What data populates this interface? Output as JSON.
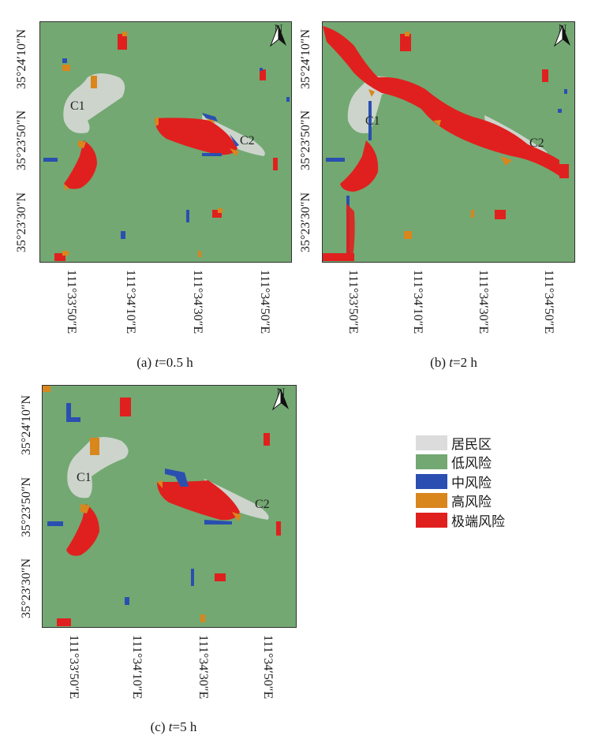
{
  "panels": [
    {
      "id": "a",
      "caption_prefix": "(a) ",
      "caption_var": "t",
      "caption_suffix": "=0.5 h",
      "y_ticks": [
        "35°24′10″N",
        "35°23′50″N",
        "35°23′30″N"
      ],
      "x_ticks": [
        "111°33′50″E",
        "111°34′10″E",
        "111°34′30″E",
        "111°34′50″E"
      ],
      "zones": [
        "C1",
        "C2"
      ],
      "north": "N"
    },
    {
      "id": "b",
      "caption_prefix": "(b) ",
      "caption_var": "t",
      "caption_suffix": "=2 h",
      "y_ticks": [
        "35°24′10″N",
        "35°23′50″N",
        "35°23′30″N"
      ],
      "x_ticks": [
        "111°33′50″E",
        "111°34′10″E",
        "111°34′30″E",
        "111°34′50″E"
      ],
      "zones": [
        "C1",
        "C2"
      ],
      "north": "N"
    },
    {
      "id": "c",
      "caption_prefix": "(c) ",
      "caption_var": "t",
      "caption_suffix": "=5 h",
      "y_ticks": [
        "35°24′10″N",
        "35°23′50″N",
        "35°23′30″N"
      ],
      "x_ticks": [
        "111°33′50″E",
        "111°34′10″E",
        "111°34′30″E",
        "111°34′50″E"
      ],
      "zones": [
        "C1",
        "C2"
      ],
      "north": "N"
    }
  ],
  "legend": [
    {
      "label": "居民区",
      "color": "#dcdcdc"
    },
    {
      "label": "低风险",
      "color": "#73a872"
    },
    {
      "label": "中风险",
      "color": "#2a4fb0"
    },
    {
      "label": "高风险",
      "color": "#d9861d"
    },
    {
      "label": "极端风险",
      "color": "#e0201e"
    }
  ]
}
